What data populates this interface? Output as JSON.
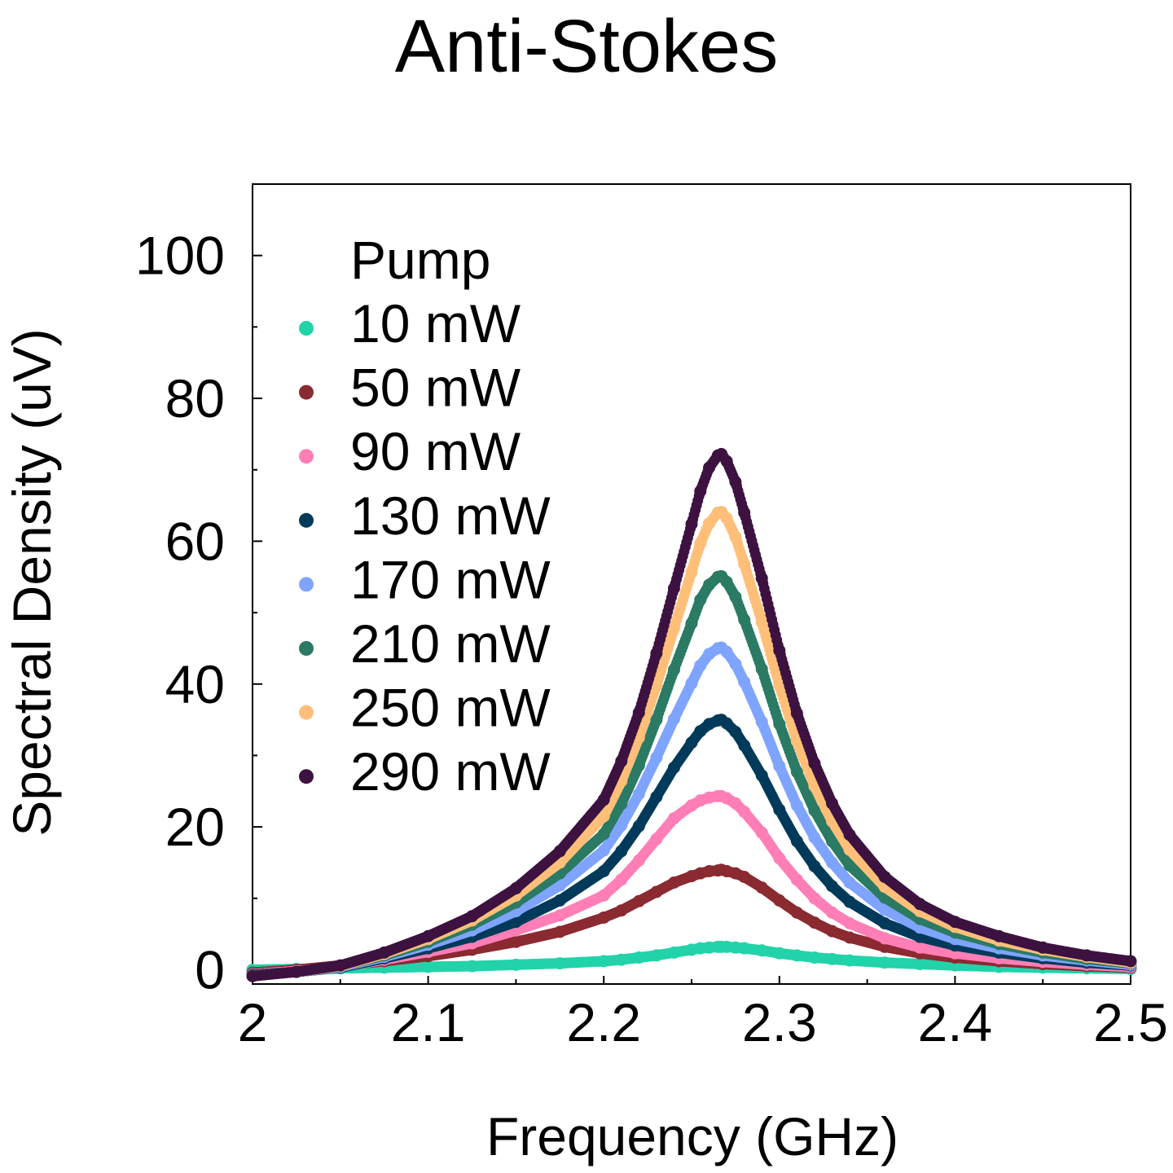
{
  "chart_data": {
    "type": "scatter",
    "title": "Anti-Stokes",
    "xlabel": "Frequency (GHz)",
    "ylabel": "Spectral Density (uV)",
    "xlim": [
      2.0,
      2.5
    ],
    "ylim": [
      -2,
      110
    ],
    "x_ticks": [
      2,
      2.1,
      2.2,
      2.3,
      2.4,
      2.5
    ],
    "x_tick_labels": [
      "2",
      "2.1",
      "2.2",
      "2.3",
      "2.4",
      "2.5"
    ],
    "y_ticks": [
      0,
      20,
      40,
      60,
      80,
      100
    ],
    "y_tick_labels": [
      "0",
      "20",
      "40",
      "60",
      "80",
      "100"
    ],
    "grid": false,
    "legend": {
      "title": "Pump",
      "placement": "top-left"
    },
    "peak_frequency": 2.267,
    "x": [
      2.0,
      2.025,
      2.05,
      2.075,
      2.1,
      2.125,
      2.15,
      2.175,
      2.2,
      2.21,
      2.22,
      2.23,
      2.24,
      2.25,
      2.255,
      2.26,
      2.265,
      2.267,
      2.27,
      2.275,
      2.28,
      2.29,
      2.3,
      2.31,
      2.32,
      2.33,
      2.34,
      2.36,
      2.38,
      2.4,
      2.425,
      2.45,
      2.475,
      2.5
    ],
    "series": [
      {
        "name": "10 mW",
        "color": "#22d3aa",
        "values": [
          0.0,
          0.1,
          0.2,
          0.3,
          0.4,
          0.5,
          0.7,
          0.9,
          1.2,
          1.4,
          1.7,
          2.0,
          2.4,
          2.8,
          3.0,
          3.1,
          3.2,
          3.2,
          3.2,
          3.1,
          3.0,
          2.7,
          2.3,
          2.0,
          1.7,
          1.5,
          1.3,
          1.0,
          0.8,
          0.6,
          0.4,
          0.3,
          0.2,
          0.1
        ]
      },
      {
        "name": "50 mW",
        "color": "#8b2a30",
        "values": [
          -0.4,
          0.0,
          0.6,
          1.2,
          1.9,
          2.8,
          3.9,
          5.3,
          7.3,
          8.3,
          9.6,
          10.9,
          12.2,
          13.1,
          13.5,
          13.8,
          13.9,
          14.0,
          13.8,
          13.5,
          13.0,
          11.5,
          9.7,
          8.0,
          6.6,
          5.4,
          4.5,
          3.2,
          2.3,
          1.7,
          1.2,
          0.8,
          0.5,
          0.3
        ]
      },
      {
        "name": "90 mW",
        "color": "#ff7eb6",
        "values": [
          -0.6,
          -0.2,
          0.4,
          1.4,
          2.5,
          3.7,
          5.5,
          7.6,
          10.4,
          12.6,
          15.3,
          18.3,
          21.2,
          23.0,
          23.7,
          24.1,
          24.3,
          24.3,
          24.0,
          23.3,
          22.1,
          19.2,
          15.6,
          12.6,
          10.0,
          8.0,
          6.5,
          4.4,
          3.1,
          2.3,
          1.6,
          1.1,
          0.7,
          0.4
        ]
      },
      {
        "name": "130 mW",
        "color": "#003a5a",
        "values": [
          -0.7,
          -0.3,
          0.3,
          1.6,
          3.0,
          4.6,
          6.7,
          9.7,
          13.8,
          16.6,
          20.1,
          24.2,
          28.3,
          31.8,
          33.4,
          34.4,
          34.9,
          35.0,
          34.5,
          33.3,
          31.4,
          27.2,
          22.4,
          18.0,
          14.5,
          11.7,
          9.5,
          6.5,
          4.6,
          3.4,
          2.4,
          1.6,
          1.0,
          0.6
        ]
      },
      {
        "name": "170 mW",
        "color": "#7fa4ff",
        "values": [
          -0.8,
          -0.3,
          0.4,
          1.8,
          3.5,
          5.5,
          8.2,
          11.8,
          16.7,
          20.2,
          24.6,
          29.7,
          35.1,
          40.1,
          42.6,
          44.2,
          45.0,
          45.1,
          44.5,
          42.8,
          40.3,
          34.7,
          28.5,
          23.0,
          18.5,
          15.0,
          12.2,
          8.4,
          5.9,
          4.3,
          3.0,
          2.0,
          1.3,
          0.7
        ]
      },
      {
        "name": "210 mW",
        "color": "#2a7a64",
        "values": [
          -0.8,
          -0.3,
          0.5,
          2.0,
          3.9,
          6.3,
          9.4,
          13.5,
          19.0,
          23.2,
          28.6,
          35.0,
          42.0,
          48.5,
          51.8,
          53.9,
          55.0,
          55.1,
          54.3,
          52.2,
          49.0,
          42.1,
          34.4,
          27.7,
          22.3,
          18.0,
          14.6,
          10.1,
          7.1,
          5.2,
          3.6,
          2.4,
          1.5,
          0.9
        ]
      },
      {
        "name": "250 mW",
        "color": "#ffbf78",
        "values": [
          -0.9,
          -0.3,
          0.5,
          2.2,
          4.3,
          6.9,
          10.4,
          15.0,
          21.5,
          26.4,
          32.5,
          39.8,
          47.8,
          55.7,
          59.7,
          62.5,
          64.0,
          64.1,
          63.2,
          60.6,
          56.8,
          48.7,
          39.8,
          32.0,
          25.7,
          20.8,
          16.8,
          11.6,
          8.2,
          6.0,
          4.1,
          2.8,
          1.8,
          1.0
        ]
      },
      {
        "name": "290 mW",
        "color": "#3d1240",
        "values": [
          -0.9,
          -0.3,
          0.6,
          2.4,
          4.7,
          7.5,
          11.4,
          16.6,
          23.8,
          29.2,
          36.0,
          44.3,
          53.4,
          62.4,
          67.0,
          70.3,
          72.0,
          72.2,
          71.2,
          68.3,
          64.0,
          54.8,
          44.7,
          35.9,
          28.9,
          23.3,
          18.9,
          13.0,
          9.2,
          6.7,
          4.7,
          3.1,
          2.0,
          1.2
        ]
      }
    ]
  }
}
